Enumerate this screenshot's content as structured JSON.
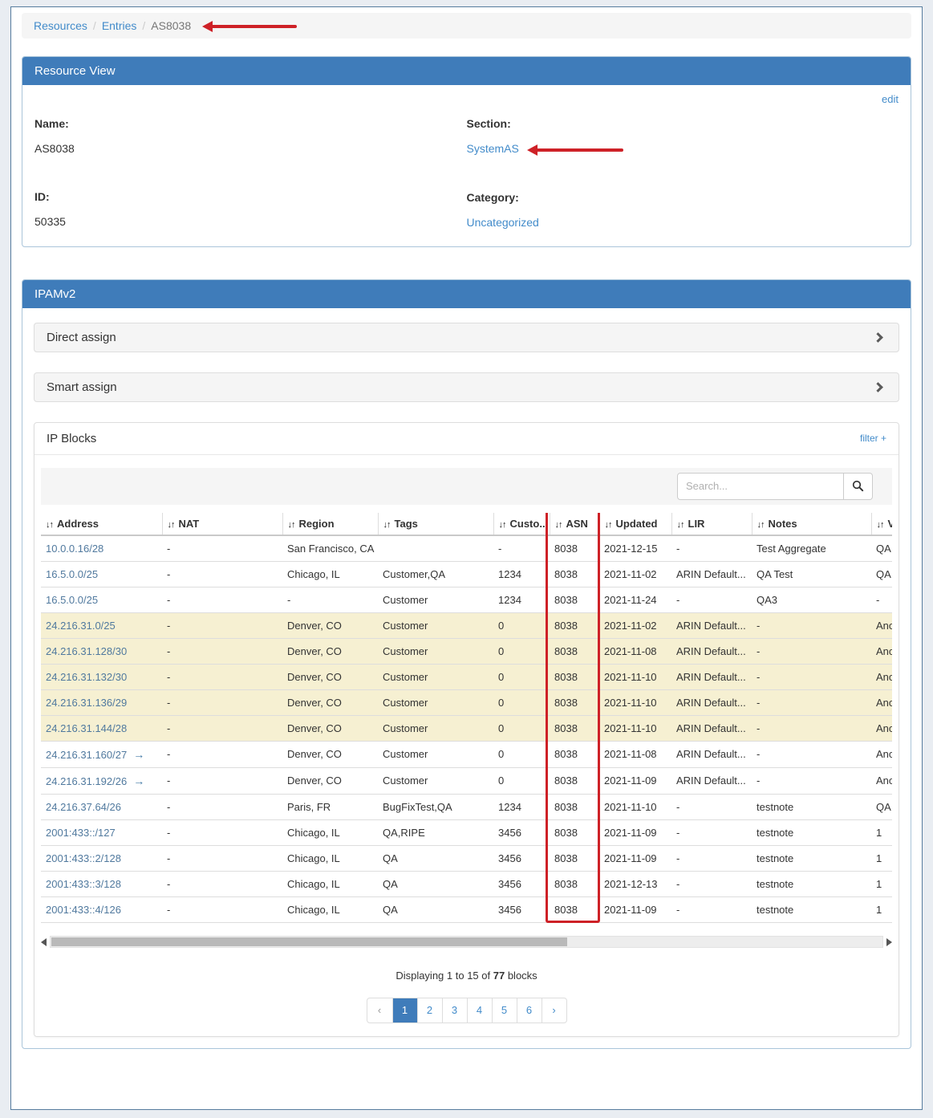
{
  "breadcrumb": {
    "items": [
      {
        "label": "Resources",
        "link": true
      },
      {
        "label": "Entries",
        "link": true
      },
      {
        "label": "AS8038",
        "link": false
      }
    ]
  },
  "resource_view": {
    "title": "Resource View",
    "edit_label": "edit",
    "name_label": "Name:",
    "name_value": "AS8038",
    "id_label": "ID:",
    "id_value": "50335",
    "section_label": "Section:",
    "section_value": "SystemAS",
    "category_label": "Category:",
    "category_value": "Uncategorized"
  },
  "ipam": {
    "title": "IPAMv2",
    "accordions": [
      {
        "label": "Direct assign"
      },
      {
        "label": "Smart assign"
      }
    ]
  },
  "ip_blocks": {
    "title": "IP Blocks",
    "filter_label": "filter +",
    "search_placeholder": "Search...",
    "sort_icon": "↓↑",
    "columns": [
      "Address",
      "NAT",
      "Region",
      "Tags",
      "Custo...",
      "ASN",
      "Updated",
      "LIR",
      "Notes",
      "VLAN"
    ],
    "rows": [
      {
        "address": "10.0.0.16/28",
        "arrow": false,
        "nat": "-",
        "region": "San Francisco, CA",
        "tags": "",
        "customer": "-",
        "asn": "8038",
        "updated": "2021-12-15",
        "lir": "-",
        "notes": "Test Aggregate",
        "vlan": "QA T",
        "highlight": false
      },
      {
        "address": "16.5.0.0/25",
        "arrow": false,
        "nat": "-",
        "region": "Chicago, IL",
        "tags": "Customer,QA",
        "customer": "1234",
        "asn": "8038",
        "updated": "2021-11-02",
        "lir": "ARIN Default...",
        "notes": "QA Test",
        "vlan": "QA T",
        "highlight": false
      },
      {
        "address": "16.5.0.0/25",
        "arrow": false,
        "nat": "-",
        "region": "-",
        "tags": "Customer",
        "customer": "1234",
        "asn": "8038",
        "updated": "2021-11-24",
        "lir": "-",
        "notes": "QA3",
        "vlan": "-",
        "highlight": false
      },
      {
        "address": "24.216.31.0/25",
        "arrow": false,
        "nat": "-",
        "region": "Denver, CO",
        "tags": "Customer",
        "customer": "0",
        "asn": "8038",
        "updated": "2021-11-02",
        "lir": "ARIN Default...",
        "notes": "-",
        "vlan": "Anot",
        "highlight": true
      },
      {
        "address": "24.216.31.128/30",
        "arrow": false,
        "nat": "-",
        "region": "Denver, CO",
        "tags": "Customer",
        "customer": "0",
        "asn": "8038",
        "updated": "2021-11-08",
        "lir": "ARIN Default...",
        "notes": "-",
        "vlan": "Anot",
        "highlight": true
      },
      {
        "address": "24.216.31.132/30",
        "arrow": false,
        "nat": "-",
        "region": "Denver, CO",
        "tags": "Customer",
        "customer": "0",
        "asn": "8038",
        "updated": "2021-11-10",
        "lir": "ARIN Default...",
        "notes": "-",
        "vlan": "Anot",
        "highlight": true
      },
      {
        "address": "24.216.31.136/29",
        "arrow": false,
        "nat": "-",
        "region": "Denver, CO",
        "tags": "Customer",
        "customer": "0",
        "asn": "8038",
        "updated": "2021-11-10",
        "lir": "ARIN Default...",
        "notes": "-",
        "vlan": "Anot",
        "highlight": true
      },
      {
        "address": "24.216.31.144/28",
        "arrow": false,
        "nat": "-",
        "region": "Denver, CO",
        "tags": "Customer",
        "customer": "0",
        "asn": "8038",
        "updated": "2021-11-10",
        "lir": "ARIN Default...",
        "notes": "-",
        "vlan": "Anot",
        "highlight": true
      },
      {
        "address": "24.216.31.160/27",
        "arrow": true,
        "nat": "-",
        "region": "Denver, CO",
        "tags": "Customer",
        "customer": "0",
        "asn": "8038",
        "updated": "2021-11-08",
        "lir": "ARIN Default...",
        "notes": "-",
        "vlan": "Anot",
        "highlight": false
      },
      {
        "address": "24.216.31.192/26",
        "arrow": true,
        "nat": "-",
        "region": "Denver, CO",
        "tags": "Customer",
        "customer": "0",
        "asn": "8038",
        "updated": "2021-11-09",
        "lir": "ARIN Default...",
        "notes": "-",
        "vlan": "Anot",
        "highlight": false
      },
      {
        "address": "24.216.37.64/26",
        "arrow": false,
        "nat": "-",
        "region": "Paris, FR",
        "tags": "BugFixTest,QA",
        "customer": "1234",
        "asn": "8038",
        "updated": "2021-11-10",
        "lir": "-",
        "notes": "testnote",
        "vlan": "QA T",
        "highlight": false
      },
      {
        "address": "2001:433::/127",
        "arrow": false,
        "nat": "-",
        "region": "Chicago, IL",
        "tags": "QA,RIPE",
        "customer": "3456",
        "asn": "8038",
        "updated": "2021-11-09",
        "lir": "-",
        "notes": "testnote",
        "vlan": "1",
        "highlight": false
      },
      {
        "address": "2001:433::2/128",
        "arrow": false,
        "nat": "-",
        "region": "Chicago, IL",
        "tags": "QA",
        "customer": "3456",
        "asn": "8038",
        "updated": "2021-11-09",
        "lir": "-",
        "notes": "testnote",
        "vlan": "1",
        "highlight": false
      },
      {
        "address": "2001:433::3/128",
        "arrow": false,
        "nat": "-",
        "region": "Chicago, IL",
        "tags": "QA",
        "customer": "3456",
        "asn": "8038",
        "updated": "2021-12-13",
        "lir": "-",
        "notes": "testnote",
        "vlan": "1",
        "highlight": false
      },
      {
        "address": "2001:433::4/126",
        "arrow": false,
        "nat": "-",
        "region": "Chicago, IL",
        "tags": "QA",
        "customer": "3456",
        "asn": "8038",
        "updated": "2021-11-09",
        "lir": "-",
        "notes": "testnote",
        "vlan": "1",
        "highlight": false
      }
    ],
    "footer": {
      "displaying_prefix": "Displaying 1 to 15 of",
      "total": "77",
      "displaying_suffix": "blocks"
    },
    "pagination": {
      "prev": "‹",
      "pages": [
        "1",
        "2",
        "3",
        "4",
        "5",
        "6"
      ],
      "next": "›",
      "active": "1"
    }
  },
  "colors": {
    "panel_header": "#3f7cba",
    "link": "#428bca",
    "highlight_row": "#f6f0d2",
    "annotation_red": "#ce2127",
    "page_background": "#e9edf2"
  }
}
